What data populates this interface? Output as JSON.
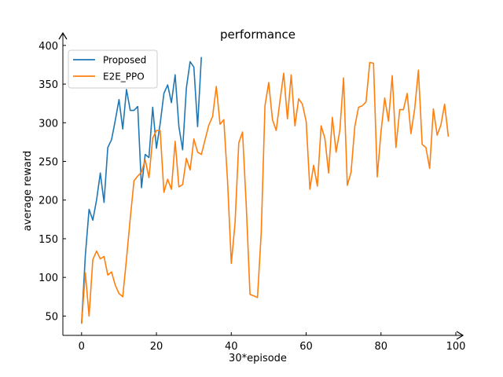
{
  "chart_data": {
    "type": "line",
    "title": "performance",
    "xlabel": "30*episode",
    "ylabel": "average reward",
    "xlim": [
      -5,
      100
    ],
    "ylim": [
      25,
      410
    ],
    "xticks": [
      0,
      20,
      40,
      60,
      80,
      100
    ],
    "yticks": [
      50,
      100,
      150,
      200,
      250,
      300,
      350,
      400
    ],
    "grid": false,
    "legend_position": "upper-left",
    "series": [
      {
        "name": "Proposed",
        "color": "#1f77b4",
        "x": [
          0,
          1,
          2,
          3,
          4,
          5,
          6,
          7,
          8,
          9,
          10,
          11,
          12,
          13,
          14,
          15,
          16,
          17,
          18,
          19,
          20,
          21,
          22,
          23,
          24,
          25,
          26,
          27,
          28,
          29,
          30,
          31,
          32
        ],
        "values": [
          40,
          128,
          188,
          174,
          200,
          235,
          197,
          268,
          278,
          303,
          330,
          292,
          343,
          316,
          316,
          321,
          216,
          259,
          255,
          320,
          267,
          299,
          338,
          349,
          326,
          362,
          295,
          265,
          345,
          379,
          372,
          295,
          385
        ]
      },
      {
        "name": "E2E_PPO",
        "color": "#ff7f0e",
        "x": [
          0,
          1,
          2,
          3,
          4,
          5,
          6,
          7,
          8,
          9,
          10,
          11,
          12,
          13,
          14,
          15,
          16,
          17,
          18,
          19,
          20,
          21,
          22,
          23,
          24,
          25,
          26,
          27,
          28,
          29,
          30,
          31,
          32,
          33,
          34,
          35,
          36,
          37,
          38,
          39,
          40,
          41,
          42,
          43,
          44,
          45,
          46,
          47,
          48,
          49,
          50,
          51,
          52,
          53,
          54,
          55,
          56,
          57,
          58,
          59,
          60,
          61,
          62,
          63,
          64,
          65,
          66,
          67,
          68,
          69,
          70,
          71,
          72,
          73,
          74,
          75,
          76,
          77,
          78,
          79,
          80,
          81,
          82,
          83,
          84,
          85,
          86,
          87,
          88,
          89,
          90,
          91,
          92,
          93,
          94,
          95,
          96,
          97,
          98
        ],
        "values": [
          40,
          106,
          50,
          123,
          134,
          124,
          127,
          103,
          107,
          90,
          79,
          75,
          124,
          176,
          225,
          231,
          236,
          252,
          229,
          280,
          290,
          290,
          210,
          227,
          214,
          276,
          217,
          220,
          254,
          239,
          279,
          262,
          259,
          278,
          297,
          308,
          347,
          298,
          304,
          225,
          118,
          170,
          274,
          288,
          193,
          78,
          76,
          74,
          158,
          322,
          352,
          304,
          290,
          328,
          364,
          305,
          362,
          296,
          331,
          324,
          302,
          214,
          245,
          218,
          296,
          280,
          235,
          307,
          262,
          290,
          358,
          219,
          236,
          295,
          320,
          322,
          327,
          378,
          377,
          230,
          288,
          332,
          302,
          361,
          268,
          317,
          317,
          338,
          286,
          318,
          368,
          272,
          268,
          241,
          318,
          284,
          297,
          324,
          282
        ]
      }
    ]
  }
}
